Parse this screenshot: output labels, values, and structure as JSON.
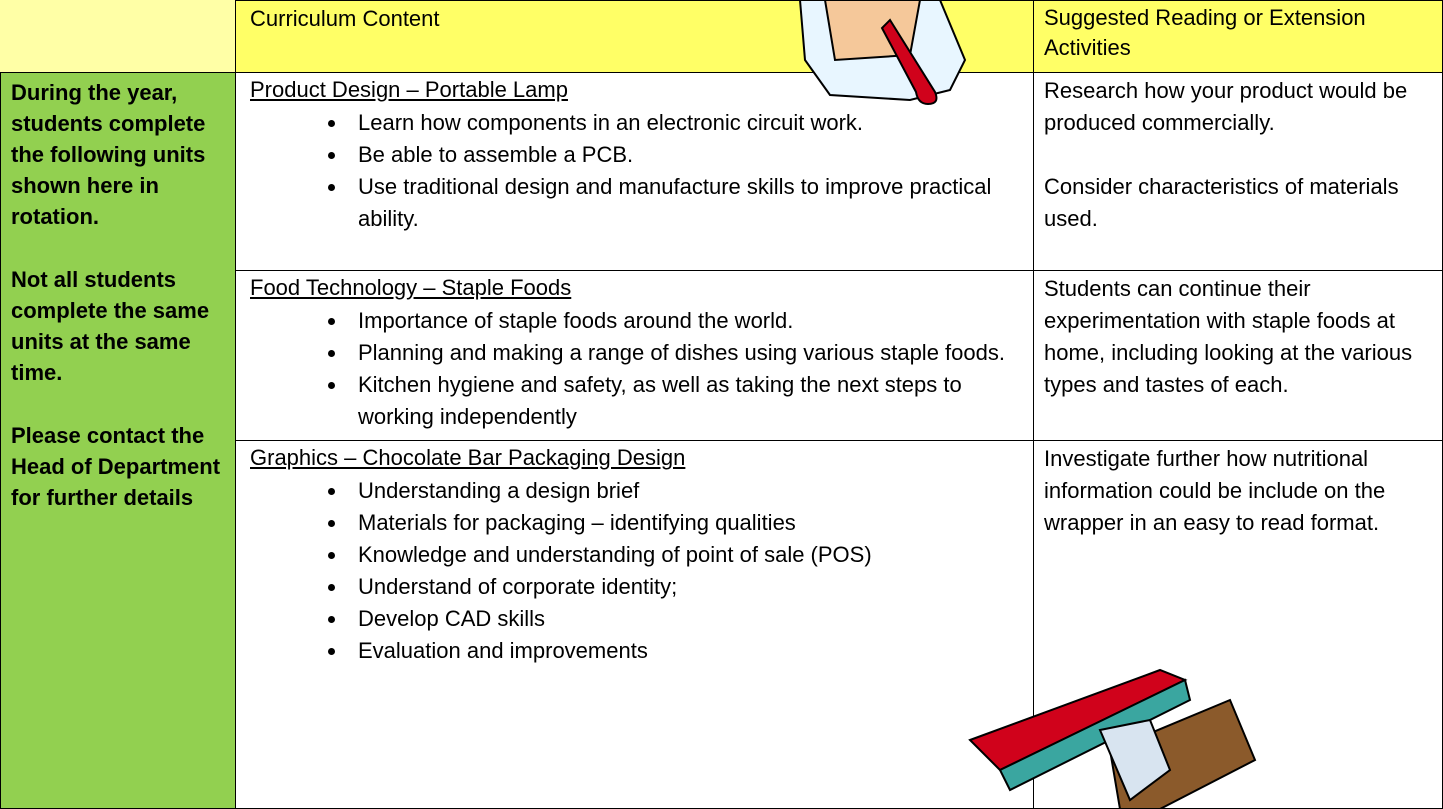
{
  "header": {
    "columns": [
      "Curriculum Content",
      "Suggested Reading or Extension Activities"
    ]
  },
  "sidebar": {
    "paragraphs": [
      "During the year, students complete the following units shown here in rotation.",
      "Not all students complete the same units at the same time.",
      "Please contact the Head of Department for further details"
    ]
  },
  "rows": [
    {
      "title": "Product Design – Portable Lamp",
      "bullets": [
        "Learn how components in an electronic circuit work.",
        "Be able to assemble a PCB.",
        "Use traditional design and manufacture skills to improve practical ability."
      ],
      "suggestions": [
        "Research how your product would be produced commercially.",
        "Consider characteristics of materials used."
      ]
    },
    {
      "title": "Food Technology – Staple Foods",
      "bullets": [
        "Importance of staple foods around the world.",
        "Planning and making a range of dishes using various staple foods.",
        "Kitchen hygiene and safety, as well as taking the next steps to working independently"
      ],
      "suggestions": [
        "Students can continue their experimentation with staple foods at home, including looking at the various types and tastes of each."
      ]
    },
    {
      "title": "Graphics – Chocolate Bar Packaging Design",
      "bullets": [
        "Understanding a design brief",
        "Materials for packaging – identifying qualities",
        "Knowledge and understanding of point of sale (POS)",
        "Understand of corporate identity;",
        "Develop CAD skills",
        "Evaluation and improvements"
      ],
      "suggestions": [
        "Investigate further how nutritional information could be include on the wrapper in an easy to read format."
      ]
    }
  ]
}
